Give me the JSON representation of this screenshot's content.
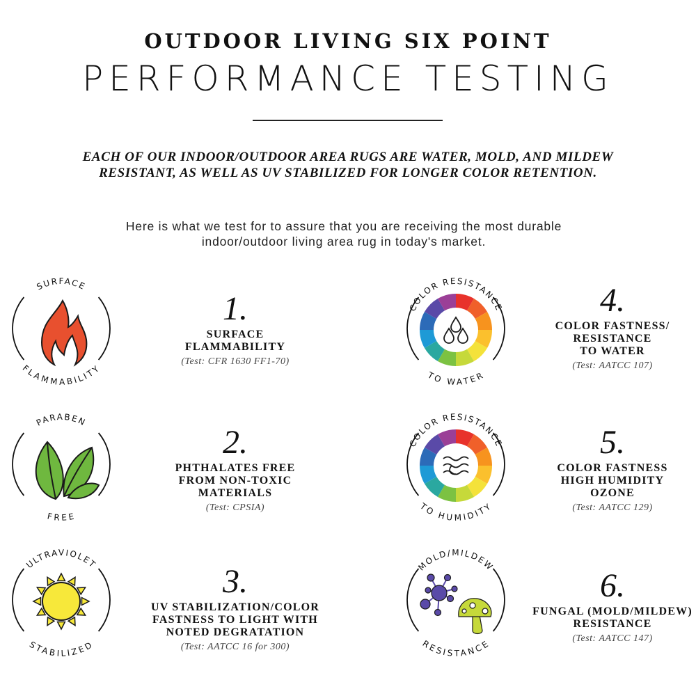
{
  "header": {
    "kicker": "OUTDOOR LIVING SIX POINT",
    "title": "PERFORMANCE TESTING",
    "intro_line1": "EACH OF OUR INDOOR/OUTDOOR AREA RUGS ARE WATER, MOLD, AND MILDEW",
    "intro_line2": "RESISTANT, AS WELL AS UV STABILIZED FOR LONGER COLOR RETENTION.",
    "sub_line1": "Here is what we test for to assure that you are receiving the most durable",
    "sub_line2": "indoor/outdoor living area rug in today's market."
  },
  "tests": [
    {
      "number": "1.",
      "name": "SURFACE\nFLAMMABILITY",
      "test": "(Test: CFR 1630 FF1-70)",
      "badge_top": "SURFACE",
      "badge_bottom": "FLAMMABILITY",
      "icon": "flame-icon"
    },
    {
      "number": "2.",
      "name": "PHTHALATES FREE\nFROM NON-TOXIC\nMATERIALS",
      "test": "(Test: CPSIA)",
      "badge_top": "PARABEN",
      "badge_bottom": "FREE",
      "icon": "leaves-icon"
    },
    {
      "number": "3.",
      "name": "UV STABILIZATION/COLOR\nFASTNESS TO LIGHT WITH\nNOTED DEGRATATION",
      "test": "(Test: AATCC 16 for 300)",
      "badge_top": "ULTRAVIOLET",
      "badge_bottom": "STABILIZED",
      "icon": "sun-icon"
    },
    {
      "number": "4.",
      "name": "COLOR FASTNESS/\nRESISTANCE\nTO WATER",
      "test": "(Test: AATCC 107)",
      "badge_top": "COLOR RESISTANCE",
      "badge_bottom": "TO WATER",
      "icon": "water-drops-icon"
    },
    {
      "number": "5.",
      "name": "COLOR FASTNESS\nHIGH HUMIDITY\nOZONE",
      "test": "(Test: AATCC 129)",
      "badge_top": "COLOR RESISTANCE",
      "badge_bottom": "TO HUMIDITY",
      "icon": "humidity-waves-icon"
    },
    {
      "number": "6.",
      "name": "FUNGAL (MOLD/MILDEW)\nRESISTANCE",
      "test": "(Test: AATCC 147)",
      "badge_top": "MOLD/MILDEW",
      "badge_bottom": "RESISTANCE",
      "icon": "mold-mushroom-icon"
    }
  ],
  "colors": {
    "flame": "#e8502f",
    "leaf": "#6fb83f",
    "sun": "#f7e83a",
    "mold": "#5a4aa8",
    "mushroom": "#c6d93a",
    "wheel": [
      "#e8322b",
      "#f0602a",
      "#f7931e",
      "#fbc02d",
      "#f4e23a",
      "#c6d93a",
      "#7cc242",
      "#2aa8a0",
      "#1e9ad6",
      "#2c6bb8",
      "#5a4aa8",
      "#9b3f97"
    ]
  }
}
